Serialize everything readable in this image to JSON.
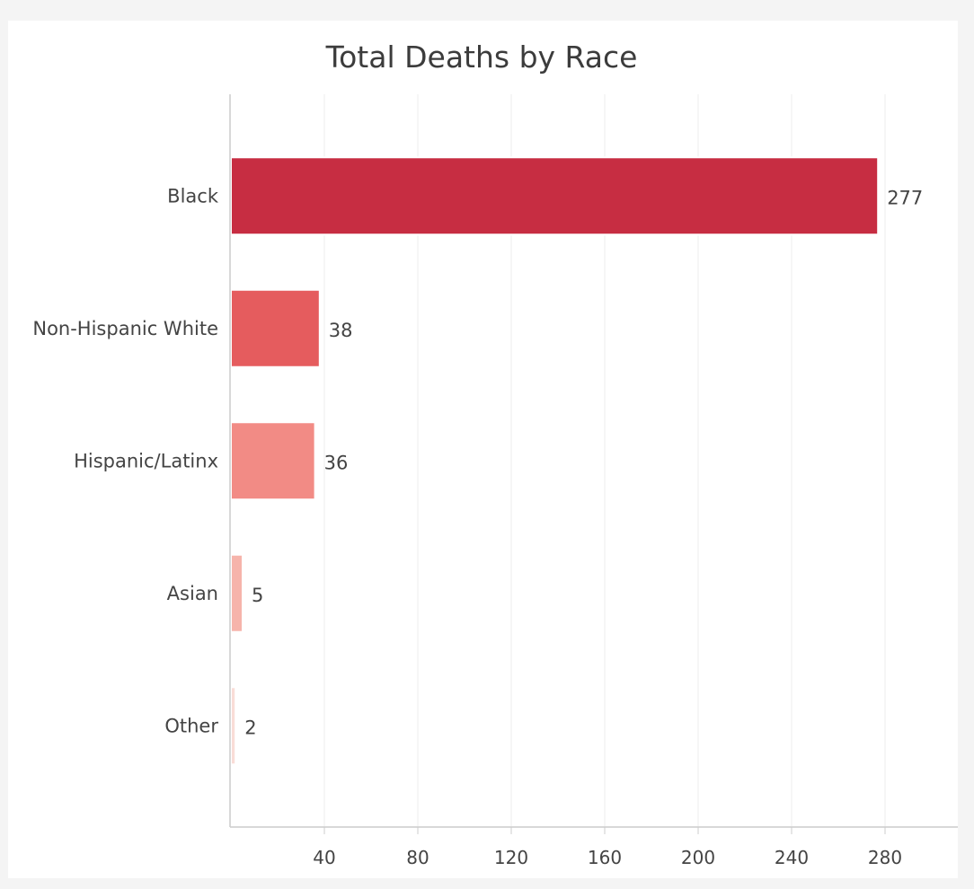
{
  "chart_data": {
    "type": "bar",
    "orientation": "horizontal",
    "title": "Total Deaths by Race",
    "categories": [
      "Black",
      "Non-Hispanic White",
      "Hispanic/Latinx",
      "Asian",
      "Other"
    ],
    "values": [
      277,
      38,
      36,
      5,
      2
    ],
    "bar_colors": [
      "#c72d42",
      "#e55c5e",
      "#f28b85",
      "#f6b4ab",
      "#f9ddd7"
    ],
    "xlim": [
      0,
      310
    ],
    "xticks": [
      40,
      80,
      120,
      160,
      200,
      240,
      280
    ],
    "grid": true,
    "legend": "none"
  }
}
